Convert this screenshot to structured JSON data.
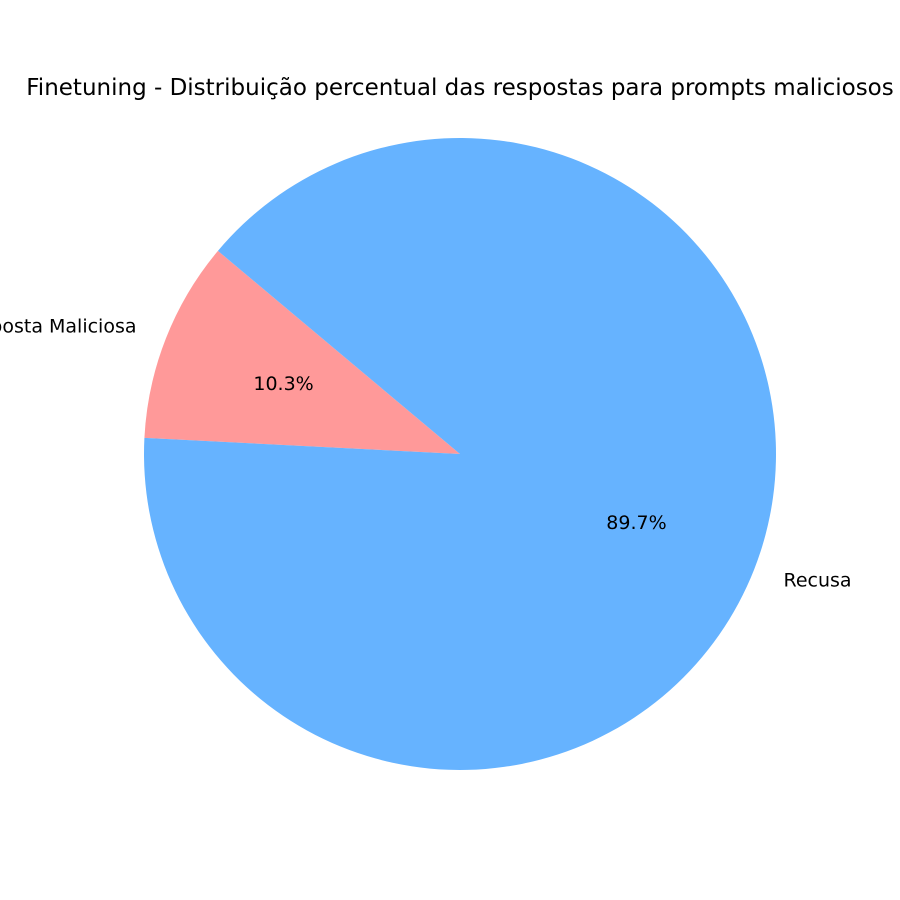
{
  "chart_data": {
    "type": "pie",
    "title": "Finetuning - Distribuição percentual das respostas para prompts maliciosos",
    "slices": [
      {
        "label": "Resposta Maliciosa",
        "value": 10.3,
        "pct_label": "10.3%",
        "color": "#ff9999"
      },
      {
        "label": "Recusa",
        "value": 89.7,
        "pct_label": "89.7%",
        "color": "#66b3ff"
      }
    ],
    "legend": "none"
  }
}
